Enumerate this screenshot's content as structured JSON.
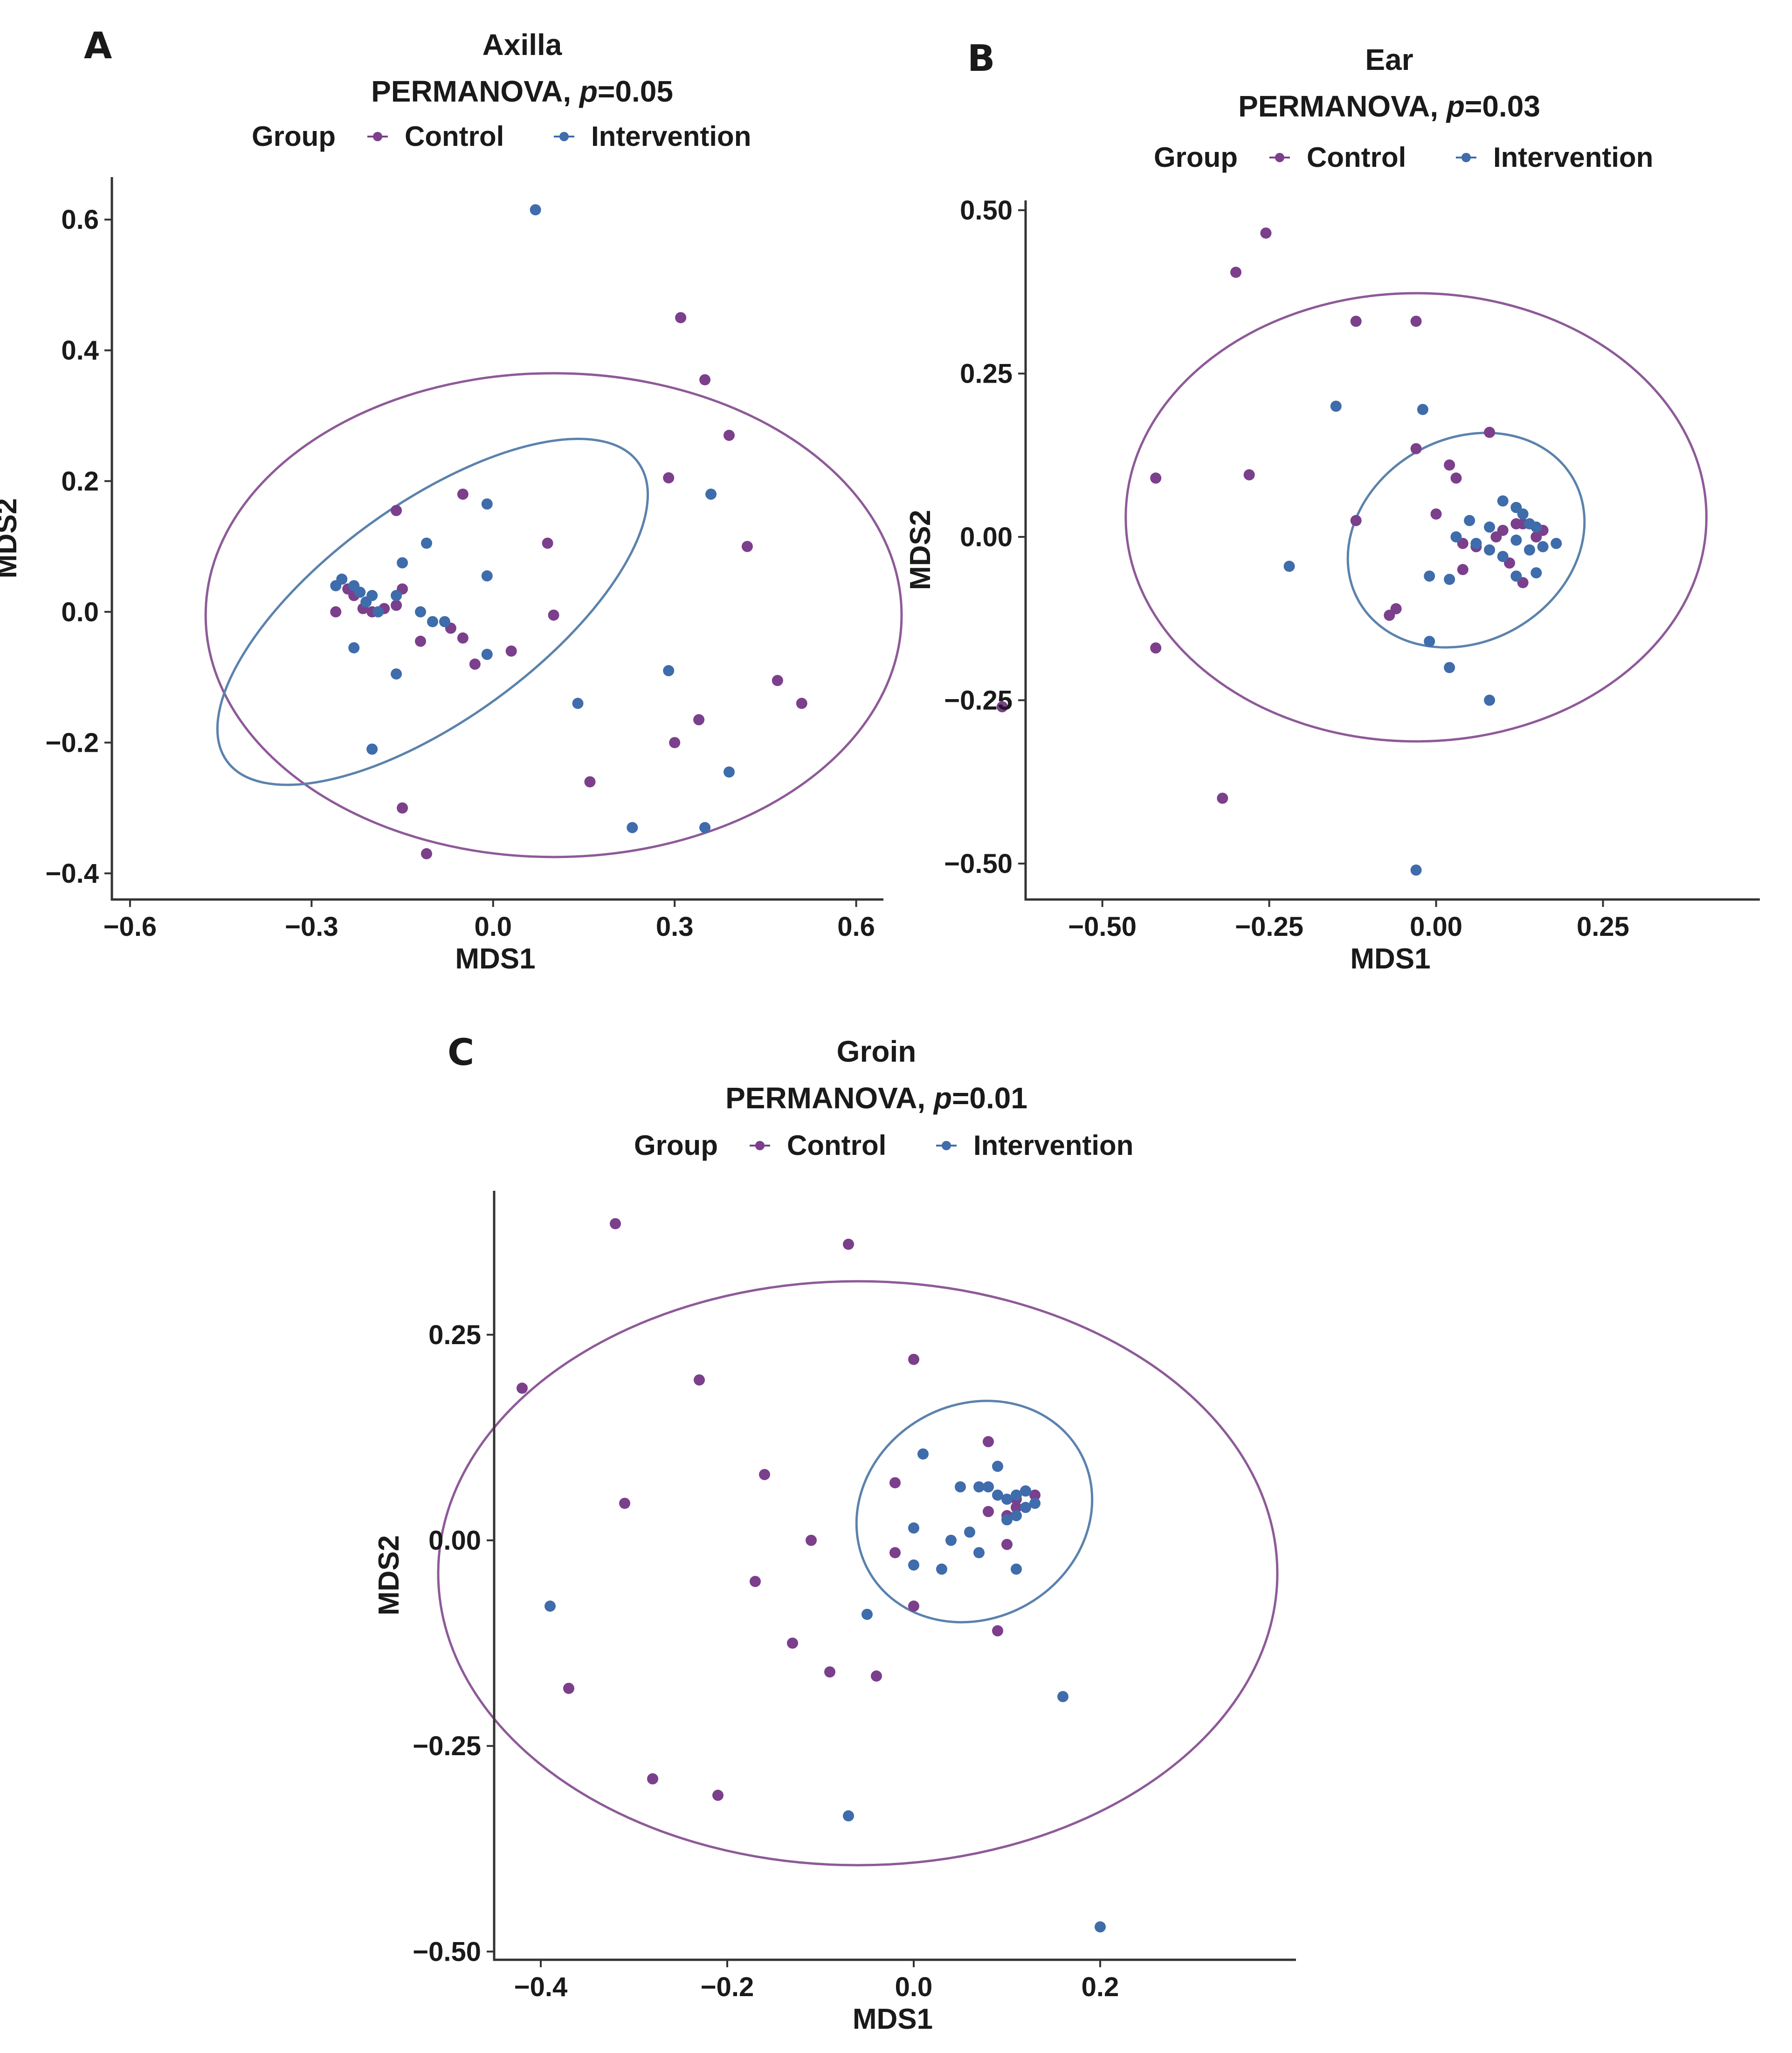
{
  "colors": {
    "control": "#7b3f8c",
    "intervention": "#3f6cab",
    "ellipse_control": "#8e5a98",
    "ellipse_intervention": "#5b82ad",
    "axis": "#333333",
    "text": "#1a1a1a"
  },
  "legend": {
    "title": "Group",
    "control": "Control",
    "intervention": "Intervention"
  },
  "chart_data": [
    {
      "id": "A",
      "type": "scatter",
      "letter": "A",
      "title": "Axilla",
      "subtitle_prefix": "PERMANOVA, ",
      "subtitle_p": "p",
      "subtitle_suffix": "=0.05",
      "xlabel": "MDS1",
      "ylabel": "MDS2",
      "xlim": [
        -0.63,
        0.645
      ],
      "ylim": [
        -0.44,
        0.665
      ],
      "xticks": [
        -0.6,
        -0.3,
        0.0,
        0.3,
        0.6
      ],
      "xtick_labels": [
        "−0.6",
        "−0.3",
        "0.0",
        "0.3",
        "0.6"
      ],
      "yticks": [
        -0.4,
        -0.2,
        0.0,
        0.2,
        0.4,
        0.6
      ],
      "ytick_labels": [
        "−0.4",
        "−0.2",
        "0.0",
        "0.2",
        "0.4",
        "0.6"
      ],
      "series": [
        {
          "name": "Control",
          "points": [
            [
              0.31,
              0.45
            ],
            [
              0.35,
              0.355
            ],
            [
              0.39,
              0.27
            ],
            [
              0.29,
              0.205
            ],
            [
              0.42,
              0.1
            ],
            [
              -0.16,
              0.155
            ],
            [
              -0.05,
              0.18
            ],
            [
              0.09,
              0.105
            ],
            [
              0.1,
              -0.005
            ],
            [
              0.47,
              -0.105
            ],
            [
              0.51,
              -0.14
            ],
            [
              0.34,
              -0.165
            ],
            [
              0.3,
              -0.2
            ],
            [
              0.16,
              -0.26
            ],
            [
              -0.15,
              -0.3
            ],
            [
              -0.11,
              -0.37
            ],
            [
              -0.26,
              0.0
            ],
            [
              -0.24,
              0.035
            ],
            [
              -0.23,
              0.025
            ],
            [
              -0.215,
              0.005
            ],
            [
              -0.2,
              0.0
            ],
            [
              -0.18,
              0.005
            ],
            [
              -0.16,
              0.01
            ],
            [
              -0.15,
              0.035
            ],
            [
              -0.12,
              -0.045
            ],
            [
              -0.07,
              -0.025
            ],
            [
              -0.05,
              -0.04
            ],
            [
              -0.03,
              -0.08
            ],
            [
              0.03,
              -0.06
            ]
          ]
        },
        {
          "name": "Intervention",
          "points": [
            [
              0.07,
              0.615
            ],
            [
              0.36,
              0.18
            ],
            [
              -0.01,
              0.165
            ],
            [
              -0.11,
              0.105
            ],
            [
              -0.15,
              0.075
            ],
            [
              -0.01,
              0.055
            ],
            [
              -0.26,
              0.04
            ],
            [
              -0.25,
              0.05
            ],
            [
              -0.23,
              0.04
            ],
            [
              -0.22,
              0.03
            ],
            [
              -0.21,
              0.015
            ],
            [
              -0.2,
              0.025
            ],
            [
              -0.19,
              0.0
            ],
            [
              -0.16,
              0.025
            ],
            [
              -0.12,
              0.0
            ],
            [
              -0.1,
              -0.015
            ],
            [
              -0.08,
              -0.015
            ],
            [
              -0.23,
              -0.055
            ],
            [
              -0.16,
              -0.095
            ],
            [
              -0.01,
              -0.065
            ],
            [
              0.29,
              -0.09
            ],
            [
              0.14,
              -0.14
            ],
            [
              0.39,
              -0.245
            ],
            [
              -0.2,
              -0.21
            ],
            [
              0.23,
              -0.33
            ],
            [
              0.35,
              -0.33
            ]
          ]
        }
      ],
      "ellipses": [
        {
          "group": "Control",
          "center": [
            0.1,
            -0.005
          ],
          "rx": 0.575,
          "ry": 0.37,
          "angle_deg": 0
        },
        {
          "group": "Intervention",
          "center": [
            -0.1,
            0.0
          ],
          "rx": 0.42,
          "ry": 0.165,
          "angle_deg": -36
        }
      ]
    },
    {
      "id": "B",
      "type": "scatter",
      "letter": "B",
      "title": "Ear",
      "subtitle_prefix": "PERMANOVA, ",
      "subtitle_p": "p",
      "subtitle_suffix": "=0.03",
      "xlabel": "MDS1",
      "ylabel": "MDS2",
      "xlim": [
        -0.615,
        0.485
      ],
      "ylim": [
        -0.555,
        0.515
      ],
      "xticks": [
        -0.5,
        -0.25,
        0.0,
        0.25
      ],
      "xtick_labels": [
        "−0.50",
        "−0.25",
        "0.00",
        "0.25"
      ],
      "yticks": [
        -0.5,
        -0.25,
        0.0,
        0.25,
        0.5
      ],
      "ytick_labels": [
        "−0.50",
        "−0.25",
        "0.00",
        "0.25",
        "0.50"
      ],
      "series": [
        {
          "name": "Control",
          "points": [
            [
              -0.255,
              0.465
            ],
            [
              -0.3,
              0.405
            ],
            [
              -0.12,
              0.33
            ],
            [
              -0.03,
              0.33
            ],
            [
              -0.28,
              0.095
            ],
            [
              -0.42,
              0.09
            ],
            [
              0.08,
              0.16
            ],
            [
              -0.03,
              0.135
            ],
            [
              0.02,
              0.11
            ],
            [
              0.03,
              0.09
            ],
            [
              0.0,
              0.035
            ],
            [
              -0.12,
              0.025
            ],
            [
              0.04,
              -0.01
            ],
            [
              0.06,
              -0.015
            ],
            [
              0.09,
              0.0
            ],
            [
              0.1,
              0.01
            ],
            [
              0.12,
              0.02
            ],
            [
              0.13,
              0.02
            ],
            [
              0.15,
              0.0
            ],
            [
              0.16,
              0.01
            ],
            [
              0.11,
              -0.04
            ],
            [
              0.04,
              -0.05
            ],
            [
              0.13,
              -0.07
            ],
            [
              -0.06,
              -0.11
            ],
            [
              -0.07,
              -0.12
            ],
            [
              -0.42,
              -0.17
            ],
            [
              -0.65,
              -0.26
            ],
            [
              -0.32,
              -0.4
            ]
          ]
        },
        {
          "name": "Intervention",
          "points": [
            [
              -0.15,
              0.2
            ],
            [
              -0.02,
              0.195
            ],
            [
              0.1,
              0.055
            ],
            [
              0.12,
              0.045
            ],
            [
              0.13,
              0.035
            ],
            [
              0.05,
              0.025
            ],
            [
              0.08,
              0.015
            ],
            [
              0.14,
              0.02
            ],
            [
              0.15,
              0.015
            ],
            [
              0.03,
              0.0
            ],
            [
              0.06,
              -0.01
            ],
            [
              0.08,
              -0.02
            ],
            [
              0.1,
              -0.03
            ],
            [
              0.12,
              -0.005
            ],
            [
              0.14,
              -0.02
            ],
            [
              0.16,
              -0.015
            ],
            [
              0.18,
              -0.01
            ],
            [
              -0.01,
              -0.06
            ],
            [
              0.02,
              -0.065
            ],
            [
              0.15,
              -0.055
            ],
            [
              0.12,
              -0.06
            ],
            [
              -0.22,
              -0.045
            ],
            [
              -0.01,
              -0.16
            ],
            [
              0.02,
              -0.2
            ],
            [
              0.08,
              -0.25
            ],
            [
              -0.03,
              -0.51
            ]
          ]
        }
      ],
      "ellipses": [
        {
          "group": "Control",
          "center": [
            -0.03,
            0.03
          ],
          "rx": 0.435,
          "ry": 0.343,
          "angle_deg": 0
        },
        {
          "group": "Intervention",
          "center": [
            0.045,
            -0.005
          ],
          "rx": 0.185,
          "ry": 0.155,
          "angle_deg": -30
        }
      ]
    },
    {
      "id": "C",
      "type": "scatter",
      "letter": "C",
      "title": "Groin",
      "subtitle_prefix": "PERMANOVA, ",
      "subtitle_p": "p",
      "subtitle_suffix": "=0.01",
      "xlabel": "MDS1",
      "ylabel": "MDS2",
      "xlim": [
        -0.45,
        0.41
      ],
      "ylim": [
        -0.51,
        0.425
      ],
      "xticks": [
        -0.4,
        -0.2,
        0.0,
        0.2
      ],
      "xtick_labels": [
        "−0.4",
        "−0.2",
        "0.0",
        "0.2"
      ],
      "yticks": [
        -0.5,
        -0.25,
        0.0,
        0.25
      ],
      "ytick_labels": [
        "−0.50",
        "−0.25",
        "0.00",
        "0.25"
      ],
      "series": [
        {
          "name": "Control",
          "points": [
            [
              -0.32,
              0.385
            ],
            [
              -0.07,
              0.36
            ],
            [
              -0.42,
              0.185
            ],
            [
              -0.23,
              0.195
            ],
            [
              0.0,
              0.22
            ],
            [
              -0.31,
              0.045
            ],
            [
              -0.16,
              0.08
            ],
            [
              -0.11,
              0.0
            ],
            [
              -0.17,
              -0.05
            ],
            [
              -0.13,
              -0.125
            ],
            [
              -0.09,
              -0.16
            ],
            [
              -0.04,
              -0.165
            ],
            [
              -0.37,
              -0.18
            ],
            [
              -0.28,
              -0.29
            ],
            [
              -0.21,
              -0.31
            ],
            [
              -0.02,
              0.07
            ],
            [
              -0.02,
              -0.015
            ],
            [
              0.0,
              -0.08
            ],
            [
              0.08,
              0.12
            ],
            [
              0.08,
              0.035
            ],
            [
              0.1,
              0.03
            ],
            [
              0.11,
              0.05
            ],
            [
              0.12,
              0.06
            ],
            [
              0.13,
              0.055
            ],
            [
              0.11,
              0.04
            ],
            [
              0.1,
              -0.005
            ],
            [
              0.09,
              -0.11
            ]
          ]
        },
        {
          "name": "Intervention",
          "points": [
            [
              0.01,
              0.105
            ],
            [
              0.05,
              0.065
            ],
            [
              0.07,
              0.065
            ],
            [
              0.08,
              0.065
            ],
            [
              0.09,
              0.055
            ],
            [
              0.09,
              0.09
            ],
            [
              0.1,
              0.05
            ],
            [
              0.11,
              0.055
            ],
            [
              0.12,
              0.06
            ],
            [
              0.1,
              0.025
            ],
            [
              0.11,
              0.03
            ],
            [
              0.12,
              0.04
            ],
            [
              0.13,
              0.045
            ],
            [
              0.0,
              0.015
            ],
            [
              0.04,
              0.0
            ],
            [
              0.06,
              0.01
            ],
            [
              0.07,
              -0.015
            ],
            [
              0.11,
              -0.035
            ],
            [
              0.0,
              -0.03
            ],
            [
              0.03,
              -0.035
            ],
            [
              -0.05,
              -0.09
            ],
            [
              0.16,
              -0.19
            ],
            [
              -0.39,
              -0.08
            ],
            [
              -0.07,
              -0.335
            ],
            [
              0.2,
              -0.47
            ]
          ]
        }
      ],
      "ellipses": [
        {
          "group": "Control",
          "center": [
            -0.06,
            -0.04
          ],
          "rx": 0.45,
          "ry": 0.355,
          "angle_deg": 0
        },
        {
          "group": "Intervention",
          "center": [
            0.065,
            0.035
          ],
          "rx": 0.13,
          "ry": 0.13,
          "angle_deg": -30
        }
      ]
    }
  ]
}
